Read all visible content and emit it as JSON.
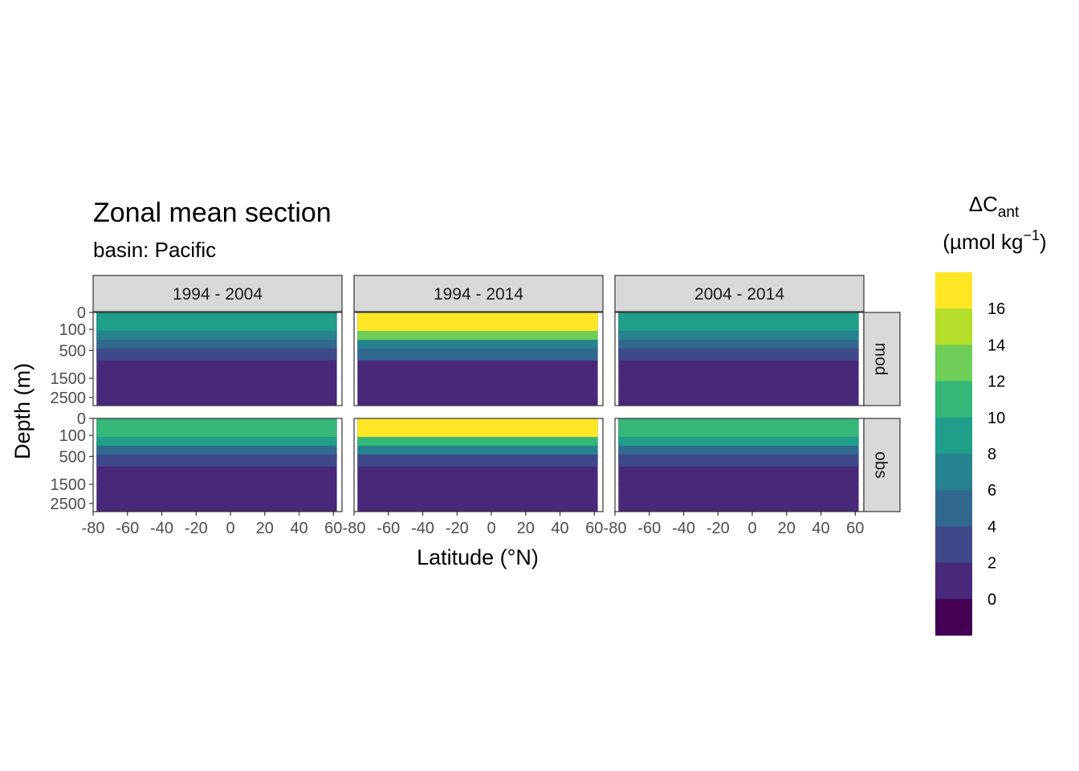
{
  "chart_data": {
    "type": "heatmap",
    "title": "Zonal mean section",
    "subtitle": "basin: Pacific",
    "xlabel": "Latitude (°N)",
    "ylabel": "Depth (m)",
    "x_ticks": [
      "-80",
      "-60",
      "-40",
      "-20",
      "0",
      "20",
      "40",
      "60"
    ],
    "x_tick_values": [
      -80,
      -60,
      -40,
      -20,
      0,
      20,
      40,
      60
    ],
    "xlim": [
      -80,
      65
    ],
    "y_ticks": [
      "0",
      "100",
      "500",
      "1500",
      "2500"
    ],
    "y_tick_values": [
      0,
      100,
      500,
      1500,
      2500
    ],
    "ylim": [
      3000,
      0
    ],
    "y_scale": "reversed sqrt",
    "columns": [
      "1994 - 2004",
      "1994 - 2014",
      "2004 - 2014"
    ],
    "rows": [
      "mod",
      "obs"
    ],
    "legend": {
      "title_main": "ΔC",
      "title_sub": "ant",
      "unit_text": "(µmol kg",
      "unit_exp": "−1",
      "unit_close": ")",
      "placement": "right",
      "tick_labels": [
        "16",
        "14",
        "12",
        "10",
        "8",
        "6",
        "4",
        "2",
        "0"
      ],
      "tick_values": [
        16,
        14,
        12,
        10,
        8,
        6,
        4,
        2,
        0
      ],
      "bins": [
        {
          "lower": 16,
          "upper": 18,
          "color": "#fde725"
        },
        {
          "lower": 14,
          "upper": 16,
          "color": "#b5de2b"
        },
        {
          "lower": 12,
          "upper": 14,
          "color": "#6ece58"
        },
        {
          "lower": 10,
          "upper": 12,
          "color": "#35b779"
        },
        {
          "lower": 8,
          "upper": 10,
          "color": "#1f9e89"
        },
        {
          "lower": 6,
          "upper": 8,
          "color": "#26828e"
        },
        {
          "lower": 4,
          "upper": 6,
          "color": "#31688e"
        },
        {
          "lower": 2,
          "upper": 4,
          "color": "#3e4989"
        },
        {
          "lower": 0,
          "upper": 2,
          "color": "#482878"
        },
        {
          "lower": -2,
          "upper": 0,
          "color": "#440154"
        }
      ]
    },
    "panels": [
      {
        "column": "1994 - 2004",
        "row": "mod",
        "lat_range": [
          -78,
          62
        ],
        "surface_value": 9.5,
        "subsurface_value": 5,
        "deep_value": 1
      },
      {
        "column": "1994 - 2014",
        "row": "mod",
        "lat_range": [
          -78,
          62
        ],
        "surface_value": 17,
        "subsurface_value": 7,
        "deep_value": 1
      },
      {
        "column": "2004 - 2014",
        "row": "mod",
        "lat_range": [
          -78,
          62
        ],
        "surface_value": 9.5,
        "subsurface_value": 5,
        "deep_value": 1
      },
      {
        "column": "1994 - 2004",
        "row": "obs",
        "lat_range": [
          -78,
          62
        ],
        "surface_value": 11,
        "subsurface_value": 5,
        "deep_value": 1
      },
      {
        "column": "1994 - 2014",
        "row": "obs",
        "lat_range": [
          -78,
          62
        ],
        "surface_value": 17,
        "subsurface_value": 6,
        "deep_value": 0
      },
      {
        "column": "2004 - 2014",
        "row": "obs",
        "lat_range": [
          -78,
          62
        ],
        "surface_value": 11,
        "subsurface_value": 5,
        "deep_value": 0
      }
    ]
  }
}
